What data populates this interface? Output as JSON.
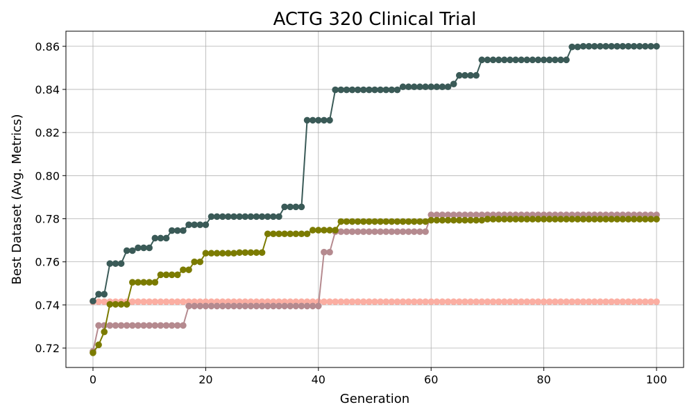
{
  "chart_data": {
    "type": "line",
    "title": "ACTG 320 Clinical Trial",
    "xlabel": "Generation",
    "ylabel": "Best Dataset (Avg. Metrics)",
    "xlim": [
      -4.8,
      104.8
    ],
    "ylim": [
      0.711,
      0.867
    ],
    "xticks": [
      0,
      20,
      40,
      60,
      80,
      100
    ],
    "yticks": [
      0.72,
      0.74,
      0.76,
      0.78,
      0.8,
      0.82,
      0.84,
      0.86
    ],
    "ytick_labels": [
      "0.72",
      "0.74",
      "0.76",
      "0.78",
      "0.80",
      "0.82",
      "0.84",
      "0.86"
    ],
    "grid": true,
    "legend": "none",
    "series": [
      {
        "color": "#fbaea2",
        "steps": [
          [
            0,
            0.7415
          ]
        ]
      },
      {
        "color": "#b58a8f",
        "steps": [
          [
            0,
            0.7185
          ],
          [
            1,
            0.7305
          ],
          [
            17,
            0.7395
          ],
          [
            41,
            0.7645
          ],
          [
            43,
            0.774
          ],
          [
            60,
            0.7818
          ]
        ]
      },
      {
        "color": "#7b7b00",
        "steps": [
          [
            0,
            0.7178
          ],
          [
            1,
            0.7215
          ],
          [
            2,
            0.7275
          ],
          [
            3,
            0.7403
          ],
          [
            7,
            0.7505
          ],
          [
            12,
            0.754
          ],
          [
            16,
            0.7563
          ],
          [
            18,
            0.76
          ],
          [
            20,
            0.764
          ],
          [
            26,
            0.7643
          ],
          [
            31,
            0.773
          ],
          [
            39,
            0.7747
          ],
          [
            44,
            0.7787
          ],
          [
            60,
            0.7793
          ],
          [
            70,
            0.7798
          ]
        ]
      },
      {
        "color": "#3a5a57",
        "steps": [
          [
            0,
            0.7418
          ],
          [
            1,
            0.745
          ],
          [
            3,
            0.7592
          ],
          [
            6,
            0.7652
          ],
          [
            8,
            0.7665
          ],
          [
            11,
            0.771
          ],
          [
            14,
            0.7745
          ],
          [
            17,
            0.7772
          ],
          [
            21,
            0.781
          ],
          [
            34,
            0.7855
          ],
          [
            38,
            0.8257
          ],
          [
            43,
            0.8398
          ],
          [
            55,
            0.8412
          ],
          [
            64,
            0.8425
          ],
          [
            65,
            0.8465
          ],
          [
            69,
            0.8537
          ],
          [
            85,
            0.8597
          ],
          [
            87,
            0.86
          ]
        ]
      }
    ],
    "generations": 100
  }
}
